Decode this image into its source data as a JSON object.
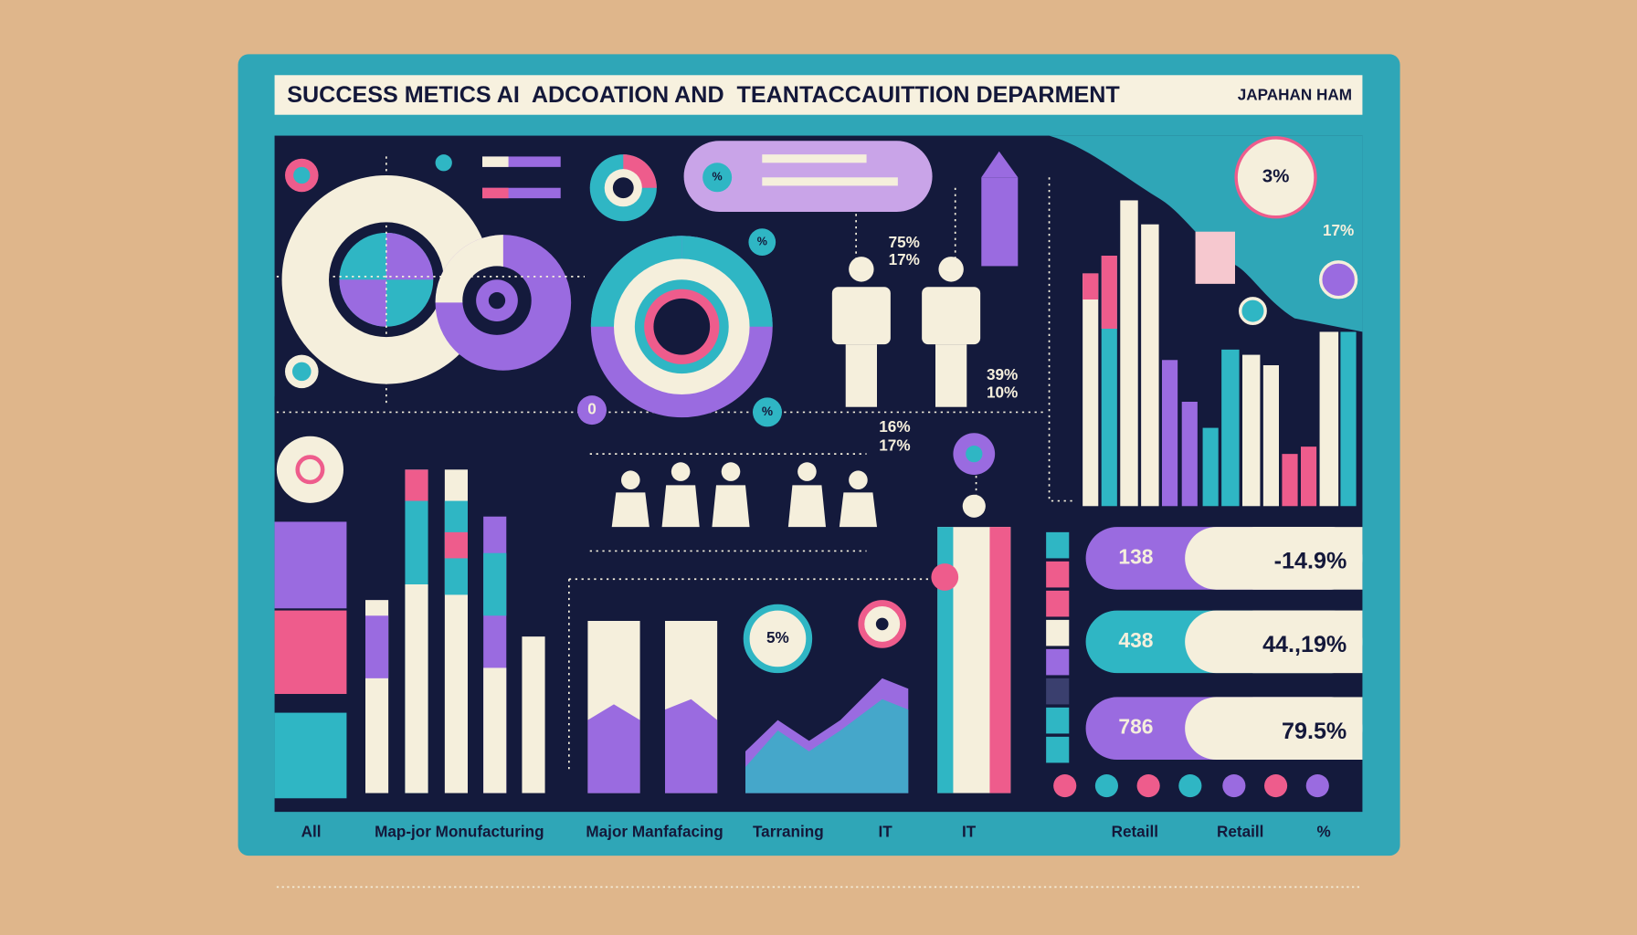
{
  "header": {
    "title": "SUCCESS METICS AI  ADCOATION AND  TEANTACCAUITTION DEPARMENT",
    "brand": "JAPAHAN HAM"
  },
  "badges": [
    "3%",
    "17%",
    "75%",
    "17%",
    "39%",
    "10%",
    "16%",
    "17%",
    "%",
    "%",
    "%",
    "0",
    "5%"
  ],
  "stats": [
    {
      "count": "138",
      "rate": "-14.9%"
    },
    {
      "count": "438",
      "rate": "44.,19%"
    },
    {
      "count": "786",
      "rate": "79.5%"
    }
  ],
  "categories": [
    "All",
    "Map-jor Monufacturing",
    "Major Manfafacing",
    "Tarraning",
    "IT",
    "IT",
    "Retaill",
    "Retaill",
    "%"
  ]
}
